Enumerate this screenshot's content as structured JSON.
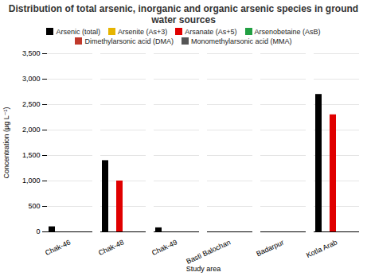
{
  "chart_data": {
    "type": "bar",
    "title": "Distribution of total arsenic, inorganic and organic arsenic species in ground water sources",
    "x_label": "Study area",
    "y_label": "Concentration (µg L⁻¹)",
    "categories": [
      "Chak-46",
      "Chak-48",
      "Chak-49",
      "Basti Balochan",
      "Badarpur",
      "Kotla Arab"
    ],
    "series": [
      {
        "name": "Arsenic (total)",
        "color": "#000000",
        "values": [
          100,
          1400,
          80,
          0,
          0,
          2700
        ]
      },
      {
        "name": "Arsenite (As+3)",
        "color": "#e6b400",
        "values": [
          0,
          0,
          0,
          0,
          0,
          0
        ]
      },
      {
        "name": "Arsanate (As+5)",
        "color": "#e00000",
        "values": [
          0,
          1000,
          0,
          0,
          0,
          2300
        ]
      },
      {
        "name": "Arsenobetaine (AsB)",
        "color": "#22a043",
        "values": [
          0,
          0,
          0,
          0,
          0,
          0
        ]
      },
      {
        "name": "Dimethylarsonic acid (DMA)",
        "color": "#c0392b",
        "values": [
          0,
          0,
          0,
          0,
          0,
          0
        ]
      },
      {
        "name": "Monomethylarsonic acid (MMA)",
        "color": "#555555",
        "values": [
          0,
          0,
          0,
          0,
          0,
          0
        ]
      }
    ],
    "ylim": [
      0,
      3500
    ],
    "yticks": [
      0,
      500,
      1000,
      1500,
      2000,
      2500,
      3000,
      3500
    ],
    "grid": true,
    "legend": "top"
  }
}
